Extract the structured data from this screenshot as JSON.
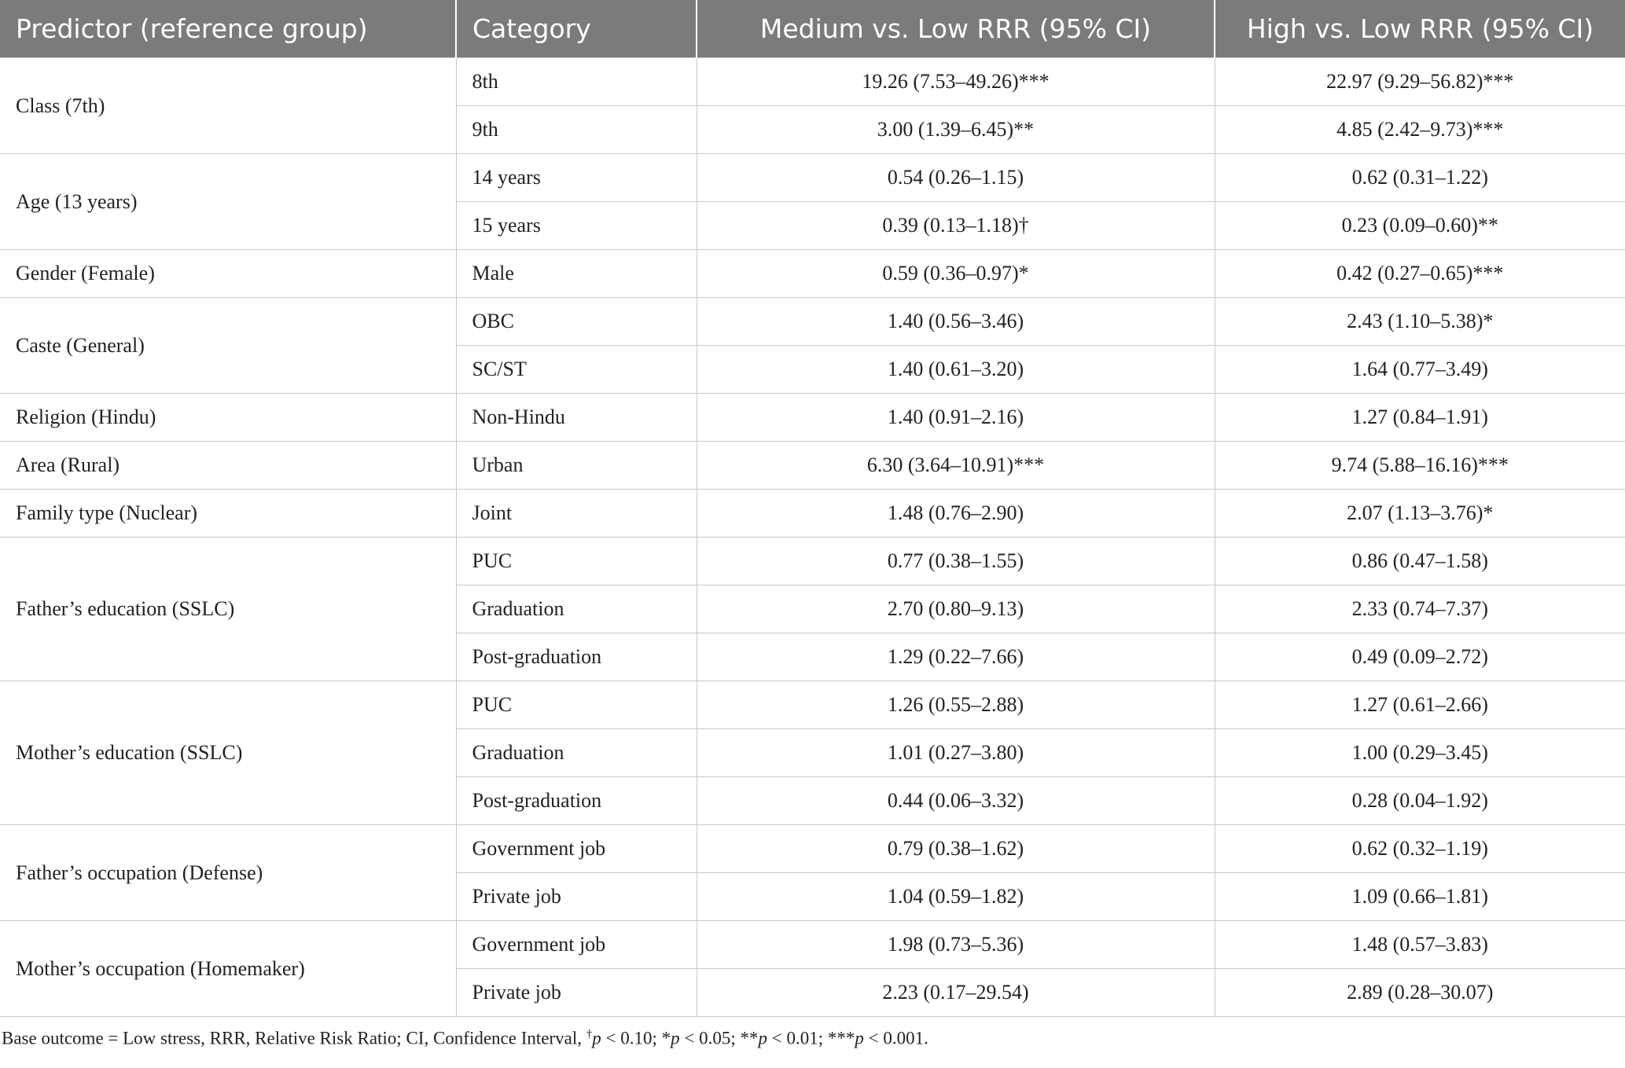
{
  "table": {
    "header": [
      "Predictor (reference group)",
      "Category",
      "Medium vs. Low RRR (95% CI)",
      "High vs. Low RRR (95% CI)"
    ],
    "groups": [
      {
        "predictor": "Class (7th)",
        "rows": [
          [
            "8th",
            "19.26 (7.53–49.26)***",
            "22.97 (9.29–56.82)***"
          ],
          [
            "9th",
            "3.00 (1.39–6.45)**",
            "4.85 (2.42–9.73)***"
          ]
        ]
      },
      {
        "predictor": "Age (13 years)",
        "rows": [
          [
            "14 years",
            "0.54 (0.26–1.15)",
            "0.62 (0.31–1.22)"
          ],
          [
            "15 years",
            "0.39 (0.13–1.18)†",
            "0.23 (0.09–0.60)**"
          ]
        ]
      },
      {
        "predictor": "Gender (Female)",
        "rows": [
          [
            "Male",
            "0.59 (0.36–0.97)*",
            "0.42 (0.27–0.65)***"
          ]
        ]
      },
      {
        "predictor": "Caste (General)",
        "rows": [
          [
            "OBC",
            "1.40 (0.56–3.46)",
            "2.43 (1.10–5.38)*"
          ],
          [
            "SC/ST",
            "1.40 (0.61–3.20)",
            "1.64 (0.77–3.49)"
          ]
        ]
      },
      {
        "predictor": "Religion (Hindu)",
        "rows": [
          [
            "Non-Hindu",
            "1.40 (0.91–2.16)",
            "1.27 (0.84–1.91)"
          ]
        ]
      },
      {
        "predictor": "Area (Rural)",
        "rows": [
          [
            "Urban",
            "6.30 (3.64–10.91)***",
            "9.74 (5.88–16.16)***"
          ]
        ]
      },
      {
        "predictor": "Family type (Nuclear)",
        "rows": [
          [
            "Joint",
            "1.48 (0.76–2.90)",
            "2.07 (1.13–3.76)*"
          ]
        ]
      },
      {
        "predictor": "Father’s education (SSLC)",
        "rows": [
          [
            "PUC",
            "0.77 (0.38–1.55)",
            "0.86 (0.47–1.58)"
          ],
          [
            "Graduation",
            "2.70 (0.80–9.13)",
            "2.33 (0.74–7.37)"
          ],
          [
            "Post-graduation",
            "1.29 (0.22–7.66)",
            "0.49 (0.09–2.72)"
          ]
        ]
      },
      {
        "predictor": "Mother’s education (SSLC)",
        "rows": [
          [
            "PUC",
            "1.26 (0.55–2.88)",
            "1.27 (0.61–2.66)"
          ],
          [
            "Graduation",
            "1.01 (0.27–3.80)",
            "1.00 (0.29–3.45)"
          ],
          [
            "Post-graduation",
            "0.44 (0.06–3.32)",
            "0.28 (0.04–1.92)"
          ]
        ]
      },
      {
        "predictor": "Father’s occupation (Defense)",
        "rows": [
          [
            "Government job",
            "0.79 (0.38–1.62)",
            "0.62 (0.32–1.19)"
          ],
          [
            "Private job",
            "1.04 (0.59–1.82)",
            "1.09 (0.66–1.81)"
          ]
        ]
      },
      {
        "predictor": "Mother’s occupation (Homemaker)",
        "rows": [
          [
            "Government job",
            "1.98 (0.73–5.36)",
            "1.48 (0.57–3.83)"
          ],
          [
            "Private job",
            "2.23 (0.17–29.54)",
            "2.89 (0.28–30.07)"
          ]
        ]
      }
    ]
  },
  "footnote": {
    "parts": [
      "Base outcome = Low stress, RRR, Relative Risk Ratio; CI, Confidence Interval, ",
      "†",
      "p",
      " < 0.10; *",
      "p",
      " < 0.05; **",
      "p",
      " < 0.01; ***",
      "p",
      " < 0.001."
    ]
  }
}
